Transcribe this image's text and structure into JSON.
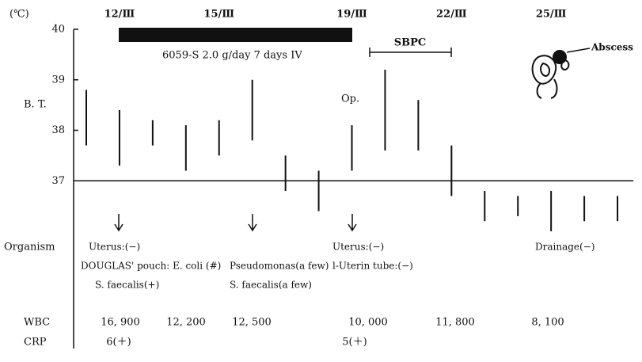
{
  "chart_data": {
    "type": "range",
    "unit_label": "(℃)",
    "ylabel": "B. T.",
    "categories": [
      null,
      "12/Ⅲ",
      null,
      null,
      "15/Ⅲ",
      null,
      null,
      null,
      "19/Ⅲ",
      null,
      null,
      "22/Ⅲ",
      null,
      null,
      "25/Ⅲ",
      null,
      null
    ],
    "series": [
      {
        "color": "#111",
        "low": [
          37.7,
          37.3,
          37.7,
          37.2,
          37.5,
          37.8,
          36.8,
          36.4,
          37.2,
          37.6,
          37.6,
          36.7,
          36.2,
          36.3,
          36.0,
          36.2,
          36.2
        ],
        "high": [
          38.8,
          38.4,
          38.2,
          38.1,
          38.2,
          39.0,
          37.5,
          37.2,
          38.1,
          39.2,
          38.6,
          37.7,
          36.8,
          36.7,
          36.8,
          36.7,
          36.7
        ]
      }
    ],
    "ylim": [
      36,
      40
    ],
    "yticks": [
      37,
      38,
      39,
      40
    ],
    "hline": 37,
    "annotations": {
      "therapy": "6059-S 2.0 g/day 7 days IV",
      "sbpc": "SBPC",
      "abscess": "Abscess",
      "op": "Op."
    }
  },
  "rows": {
    "organism": {
      "label": "Organism",
      "entries": [
        "Uterus:(−)",
        "DOUGLAS' pouch: E. coli (#)",
        "S. faecalis(+)",
        "Pseudomonas(a few)",
        "S. faecalis(a few)",
        "Uterus:(−)",
        "l-Uterin tube:(−)",
        "Drainage(−)"
      ]
    },
    "wbc": {
      "label": "WBC",
      "values": [
        "16, 900",
        "12, 200",
        "12, 500",
        "10, 000",
        "11, 800",
        "8, 100"
      ]
    },
    "crp": {
      "label": "CRP",
      "values": [
        "6(＋)",
        "5(＋)"
      ]
    }
  }
}
